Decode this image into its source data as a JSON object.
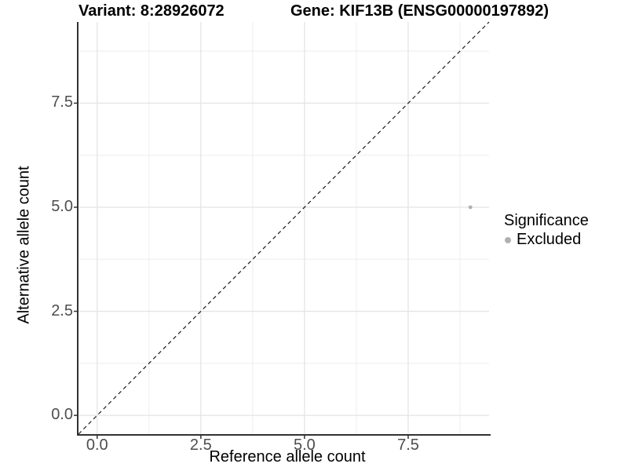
{
  "titles": {
    "variant": "Variant: 8:28926072",
    "gene": "Gene: KIF13B (ENSG00000197892)"
  },
  "chart_data": {
    "type": "scatter",
    "xlabel": "Reference allele count",
    "ylabel": "Alternative allele count",
    "xlim": [
      -0.45,
      9.45
    ],
    "ylim": [
      -0.45,
      9.45
    ],
    "x_ticks": [
      0.0,
      2.5,
      5.0,
      7.5
    ],
    "x_tick_labels": [
      "0.0",
      "2.5",
      "5.0",
      "7.5"
    ],
    "y_ticks": [
      0.0,
      2.5,
      5.0,
      7.5
    ],
    "y_tick_labels": [
      "0.0",
      "2.5",
      "5.0",
      "7.5"
    ],
    "grid": {
      "major": true,
      "minor": true
    },
    "series": [
      {
        "name": "Excluded",
        "color": "#b0b0b0",
        "points": [
          [
            9,
            5
          ]
        ]
      }
    ],
    "reference_line": {
      "type": "identity y=x",
      "style": "dashed",
      "color": "#1a1a1a"
    },
    "legend": {
      "title": "Significance",
      "position": "right",
      "entries": [
        {
          "label": "Excluded",
          "color": "#b0b0b0"
        }
      ]
    }
  },
  "style_colors": {
    "background": "#ffffff",
    "axis_line": "#333333",
    "tick_mark": "#333333",
    "tick_label": "#4d4d4d",
    "grid_major": "#e4e4e4",
    "grid_minor": "#eeeeee"
  }
}
